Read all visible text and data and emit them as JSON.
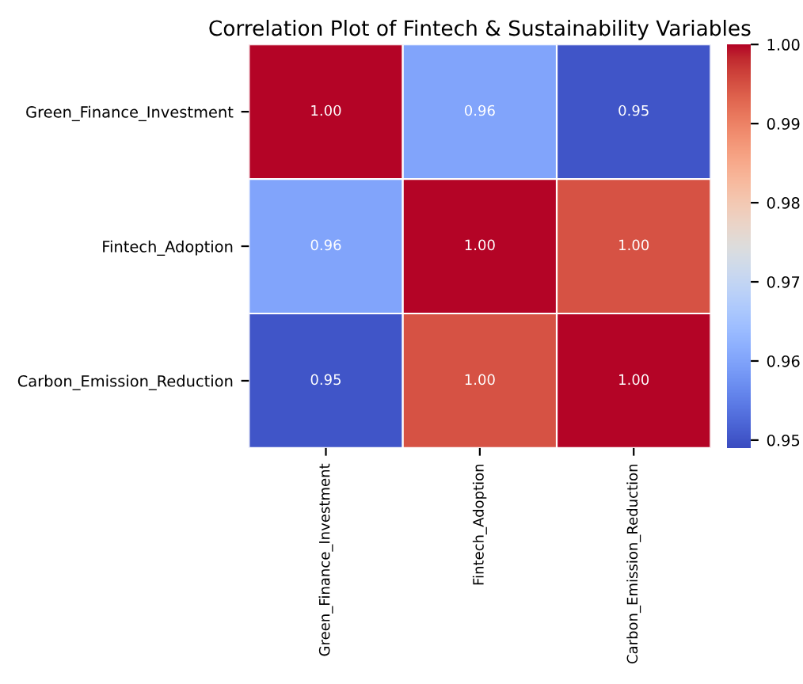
{
  "chart_data": {
    "type": "heatmap",
    "title": "Correlation Plot of Fintech & Sustainability Variables",
    "categories": [
      "Green_Finance_Investment",
      "Fintech_Adoption",
      "Carbon_Emission_Reduction"
    ],
    "y_categories": [
      "Green_Finance_Investment",
      "Fintech_Adoption",
      "Carbon_Emission_Reduction"
    ],
    "cells": [
      [
        1.0,
        0.96,
        0.95
      ],
      [
        0.96,
        1.0,
        0.995
      ],
      [
        0.95,
        0.995,
        1.0
      ]
    ],
    "cell_labels": [
      [
        "1.00",
        "0.96",
        "0.95"
      ],
      [
        "0.96",
        "1.00",
        "1.00"
      ],
      [
        "0.95",
        "1.00",
        "1.00"
      ]
    ],
    "clim": [
      0.949,
      1.0
    ],
    "cticks": [
      0.95,
      0.96,
      0.97,
      0.98,
      0.99,
      {
        "value": 1.0,
        "label": "1.00"
      }
    ]
  }
}
